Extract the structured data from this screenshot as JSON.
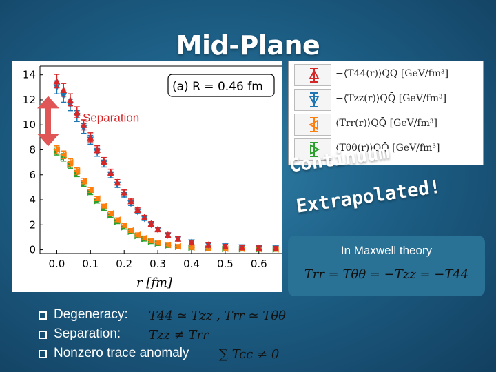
{
  "slide": {
    "title": "Mid-Plane",
    "separation_label": "Separation",
    "annotation_continuum": "Continuum",
    "annotation_extrapolated": "Extrapolated!",
    "maxwell": {
      "heading": "In Maxwell theory",
      "equation": "Trr = Tθθ = −Tzz = −T44"
    },
    "bullets": [
      {
        "label": "Degeneracy:",
        "math": "T44 ≃ Tzz ,    Trr ≃ Tθθ"
      },
      {
        "label": "Separation:",
        "math": "Tzz ≠ Trr"
      },
      {
        "label": "Nonzero trace anomaly",
        "math": "∑ Tcc ≠ 0"
      }
    ]
  },
  "chart_data": {
    "type": "scatter",
    "annotation": "(a) R = 0.46 fm",
    "xlabel": "r [fm]",
    "ylabel": "",
    "xlim": [
      -0.05,
      0.67
    ],
    "ylim": [
      -0.3,
      14.7
    ],
    "xticks": [
      "0.0",
      "0.1",
      "0.2",
      "0.3",
      "0.4",
      "0.5",
      "0.6"
    ],
    "yticks": [
      "0",
      "2",
      "4",
      "6",
      "8",
      "10",
      "12",
      "14"
    ],
    "grid": false,
    "legend_position": "outside-right",
    "series": [
      {
        "name": "−⟨T44(r)⟩QQ̄ [GeV/fm³]",
        "color": "#d62728",
        "marker": "triangle-up",
        "x": [
          0.0,
          0.02,
          0.04,
          0.06,
          0.08,
          0.1,
          0.12,
          0.14,
          0.16,
          0.18,
          0.2,
          0.22,
          0.24,
          0.26,
          0.28,
          0.3,
          0.33,
          0.36,
          0.4,
          0.45,
          0.5,
          0.55,
          0.6,
          0.65
        ],
        "y": [
          13.5,
          12.8,
          12.0,
          11.0,
          10.0,
          9.0,
          8.0,
          7.1,
          6.2,
          5.4,
          4.6,
          3.9,
          3.2,
          2.6,
          2.1,
          1.65,
          1.2,
          0.9,
          0.6,
          0.4,
          0.28,
          0.2,
          0.15,
          0.12
        ]
      },
      {
        "name": "−⟨Tzz(r)⟩QQ̄ [GeV/fm³]",
        "color": "#1f77b4",
        "marker": "triangle-down",
        "x": [
          0.0,
          0.02,
          0.04,
          0.06,
          0.08,
          0.1,
          0.12,
          0.14,
          0.16,
          0.18,
          0.2,
          0.22,
          0.24,
          0.26,
          0.28,
          0.3,
          0.33,
          0.36,
          0.4,
          0.45,
          0.5,
          0.55,
          0.6,
          0.65
        ],
        "y": [
          13.0,
          12.3,
          11.6,
          10.7,
          9.7,
          8.8,
          7.8,
          6.9,
          6.0,
          5.2,
          4.4,
          3.7,
          3.05,
          2.5,
          2.0,
          1.6,
          1.15,
          0.85,
          0.58,
          0.38,
          0.27,
          0.19,
          0.14,
          0.11
        ]
      },
      {
        "name": "⟨Trr(r)⟩QQ̄ [GeV/fm³]",
        "color": "#ff7f0e",
        "marker": "triangle-left",
        "x": [
          0.0,
          0.02,
          0.04,
          0.06,
          0.08,
          0.1,
          0.12,
          0.14,
          0.16,
          0.18,
          0.2,
          0.22,
          0.24,
          0.26,
          0.28,
          0.3,
          0.33,
          0.36,
          0.4,
          0.45,
          0.5,
          0.55,
          0.6,
          0.65
        ],
        "y": [
          8.0,
          7.6,
          7.0,
          6.3,
          5.5,
          4.8,
          4.1,
          3.5,
          2.9,
          2.4,
          1.95,
          1.55,
          1.2,
          0.95,
          0.72,
          0.55,
          0.38,
          0.27,
          0.18,
          0.12,
          0.08,
          0.06,
          0.05,
          0.04
        ]
      },
      {
        "name": "⟨Tθθ(r)⟩QQ̄ [GeV/fm³]",
        "color": "#2ca02c",
        "marker": "triangle-right",
        "x": [
          0.0,
          0.02,
          0.04,
          0.06,
          0.08,
          0.1,
          0.12,
          0.14,
          0.16,
          0.18,
          0.2,
          0.22,
          0.24,
          0.26,
          0.28,
          0.3,
          0.33,
          0.36,
          0.4,
          0.45,
          0.5,
          0.55,
          0.6,
          0.65
        ],
        "y": [
          7.9,
          7.4,
          6.8,
          6.1,
          5.3,
          4.6,
          3.9,
          3.3,
          2.75,
          2.25,
          1.8,
          1.45,
          1.1,
          0.85,
          0.65,
          0.5,
          0.34,
          0.24,
          0.16,
          0.1,
          0.07,
          0.05,
          0.04,
          0.03
        ]
      }
    ]
  }
}
